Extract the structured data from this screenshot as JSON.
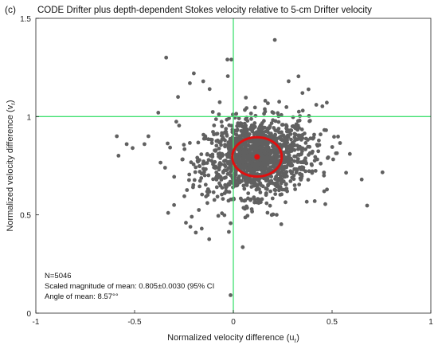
{
  "chart_data": {
    "type": "scatter",
    "panel_label": "(c)",
    "title": "CODE Drifter plus depth-dependent Stokes velocity relative to 5-cm Drifter velocity",
    "xlabel": "Normalized velocity difference (u",
    "xlabel_sub": "r",
    "xlabel_close": ")",
    "ylabel": "Normalized velocity difference (v",
    "ylabel_sub": "r",
    "ylabel_close": ")",
    "xlim": [
      -1,
      1
    ],
    "ylim": [
      0,
      1.5
    ],
    "xticks": [
      -1,
      -0.5,
      0,
      0.5,
      1
    ],
    "xtick_labels": [
      "-1",
      "-0.5",
      "0",
      "0.5",
      "1"
    ],
    "yticks": [
      0,
      0.5,
      1,
      1.5
    ],
    "ytick_labels": [
      "0",
      "0.5",
      "1",
      "1.5"
    ],
    "reference_lines": {
      "x": 0,
      "y": 1,
      "color": "#40e070"
    },
    "point_color": "#606060",
    "cluster": {
      "center": [
        0.12,
        0.79
      ],
      "spread_x": 0.13,
      "spread_y": 0.095,
      "n_points": 5046
    },
    "outliers": [
      [
        0.21,
        1.39
      ],
      [
        -0.34,
        1.3
      ],
      [
        -0.03,
        1.29
      ],
      [
        -0.01,
        1.29
      ],
      [
        -0.2,
        1.22
      ],
      [
        -0.22,
        1.17
      ],
      [
        -0.59,
        0.9
      ],
      [
        -0.54,
        0.86
      ],
      [
        -0.51,
        0.84
      ],
      [
        -0.45,
        0.86
      ],
      [
        -0.43,
        0.9
      ],
      [
        0.59,
        0.81
      ],
      [
        0.65,
        0.68
      ],
      [
        -0.19,
        0.41
      ],
      [
        -0.16,
        0.43
      ],
      [
        -0.24,
        0.46
      ],
      [
        -0.33,
        0.51
      ],
      [
        -0.3,
        0.55
      ],
      [
        0.46,
        0.62
      ],
      [
        0.42,
        1.06
      ],
      [
        0.35,
        1.12
      ],
      [
        -0.38,
        1.02
      ],
      [
        -0.28,
        1.1
      ],
      [
        0.28,
        1.18
      ],
      [
        -0.12,
        1.14
      ]
    ],
    "mean_point": [
      0.12,
      0.795
    ],
    "confidence_ellipse": {
      "center": [
        0.12,
        0.795
      ],
      "semi_x": 0.125,
      "semi_y": 0.1,
      "color": "#e01010"
    },
    "annotations": [
      "N=5046",
      "Scaled magnitude of mean: 0.805±0.0030 (95% CI",
      "Angle of mean: 8.57°°"
    ]
  }
}
